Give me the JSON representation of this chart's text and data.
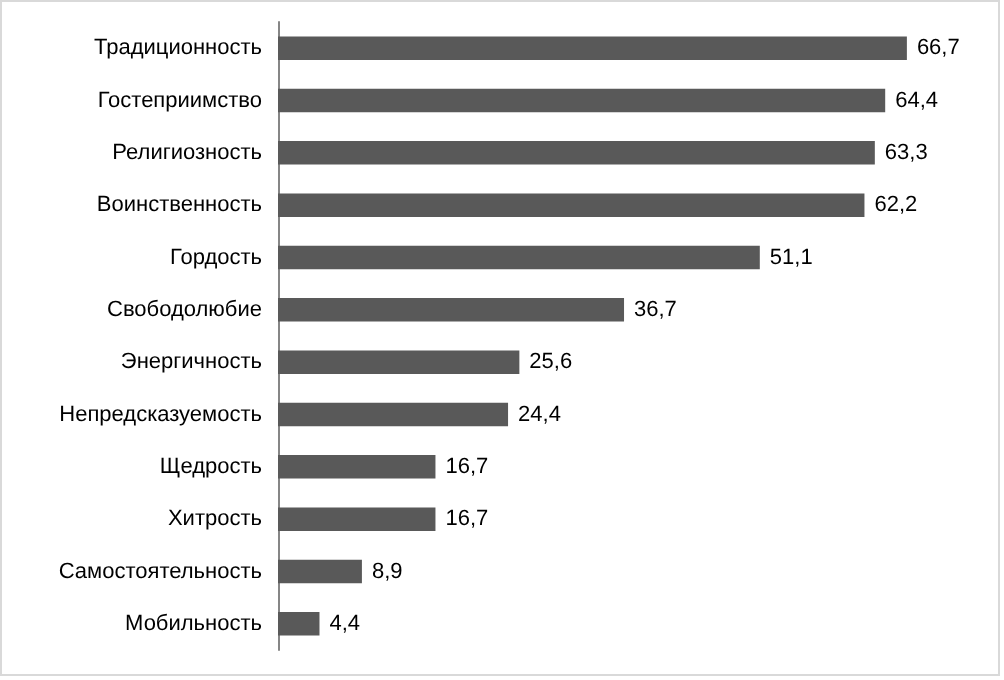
{
  "chart_data": {
    "type": "bar",
    "orientation": "horizontal",
    "categories": [
      "Традиционность",
      "Гостеприимство",
      "Религиозность",
      "Воинственность",
      "Гордость",
      "Свободолюбие",
      "Энергичность",
      "Непредсказуемость",
      "Щедрость",
      "Хитрость",
      "Самостоятельность",
      "Мобильность"
    ],
    "values": [
      66.7,
      64.4,
      63.3,
      62.2,
      51.1,
      36.7,
      25.6,
      24.4,
      16.7,
      16.7,
      8.9,
      4.4
    ],
    "value_labels": [
      "66,7",
      "64,4",
      "63,3",
      "62,2",
      "51,1",
      "36,7",
      "25,6",
      "24,4",
      "16,7",
      "16,7",
      "8,9",
      "4,4"
    ],
    "color": "#595959",
    "tick_labels": "y"
  }
}
